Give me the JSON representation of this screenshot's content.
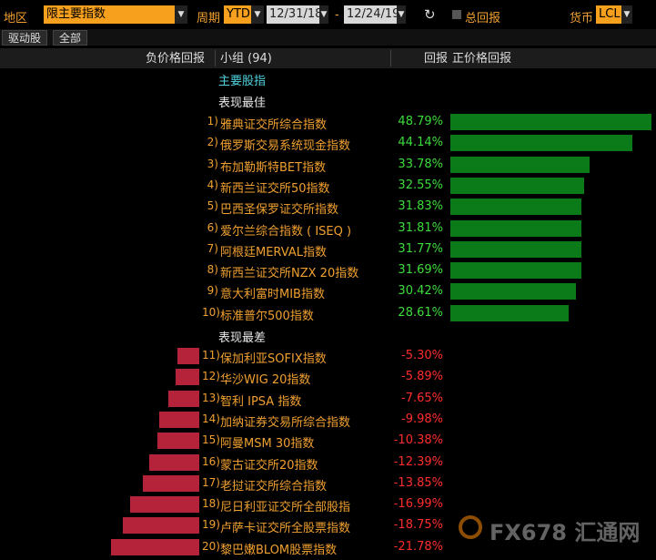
{
  "toolbar": {
    "region_label": "地区",
    "region_value": "限主要指数",
    "period_label": "周期",
    "period_value": "YTD",
    "date_from": "12/31/18",
    "date_sep": "-",
    "date_to": "12/24/19",
    "total_return_label": "总回报",
    "currency_label": "货币",
    "currency_value": "LCL"
  },
  "tabs": [
    "驱动股",
    "全部"
  ],
  "columns": {
    "neg_return": "负价格回报",
    "group": "小组 (94)",
    "return": "回报",
    "pos_return": "正价格回报"
  },
  "groups": {
    "main": "主要股指",
    "best": "表现最佳",
    "worst": "表现最差"
  },
  "best": [
    {
      "rank": "1)",
      "name": "雅典证交所综合指数",
      "value": 48.79,
      "label": "48.79%"
    },
    {
      "rank": "2)",
      "name": "俄罗斯交易系统现金指数",
      "value": 44.14,
      "label": "44.14%"
    },
    {
      "rank": "3)",
      "name": "布加勒斯特BET指数",
      "value": 33.78,
      "label": "33.78%"
    },
    {
      "rank": "4)",
      "name": "新西兰证交所50指数",
      "value": 32.55,
      "label": "32.55%"
    },
    {
      "rank": "5)",
      "name": "巴西圣保罗证交所指数",
      "value": 31.83,
      "label": "31.83%"
    },
    {
      "rank": "6)",
      "name": "爱尔兰综合指数 ( ISEQ )",
      "value": 31.81,
      "label": "31.81%"
    },
    {
      "rank": "7)",
      "name": "阿根廷MERVAL指数",
      "value": 31.77,
      "label": "31.77%"
    },
    {
      "rank": "8)",
      "name": "新西兰证交所NZX 20指数",
      "value": 31.69,
      "label": "31.69%"
    },
    {
      "rank": "9)",
      "name": "意大利富时MIB指数",
      "value": 30.42,
      "label": "30.42%"
    },
    {
      "rank": "10)",
      "name": "标准普尔500指数",
      "value": 28.61,
      "label": "28.61%"
    }
  ],
  "worst": [
    {
      "rank": "11)",
      "name": "保加利亚SOFIX指数",
      "value": -5.3,
      "label": "-5.30%"
    },
    {
      "rank": "12)",
      "name": "华沙WIG 20指数",
      "value": -5.89,
      "label": "-5.89%"
    },
    {
      "rank": "13)",
      "name": "智利 IPSA 指数",
      "value": -7.65,
      "label": "-7.65%"
    },
    {
      "rank": "14)",
      "name": "加纳证券交易所综合指数",
      "value": -9.98,
      "label": "-9.98%"
    },
    {
      "rank": "15)",
      "name": "阿曼MSM 30指数",
      "value": -10.38,
      "label": "-10.38%"
    },
    {
      "rank": "16)",
      "name": "蒙古证交所20指数",
      "value": -12.39,
      "label": "-12.39%"
    },
    {
      "rank": "17)",
      "name": "老挝证交所综合指数",
      "value": -13.85,
      "label": "-13.85%"
    },
    {
      "rank": "18)",
      "name": "尼日利亚证交所全部股指",
      "value": -16.99,
      "label": "-16.99%"
    },
    {
      "rank": "19)",
      "name": "卢萨卡证交所全股票指数",
      "value": -18.75,
      "label": "-18.75%"
    },
    {
      "rank": "20)",
      "name": "黎巴嫩BLOM股票指数",
      "value": -21.78,
      "label": "-21.78%"
    }
  ],
  "watermark": "FX678 汇通网",
  "colors": {
    "accent": "#f7a01d",
    "positive_bar": "#0b7a19",
    "negative_bar": "#b5233a",
    "positive_text": "#3cdc3c",
    "negative_text": "#ff2d2d",
    "group_heading": "#4fd3e0"
  }
}
